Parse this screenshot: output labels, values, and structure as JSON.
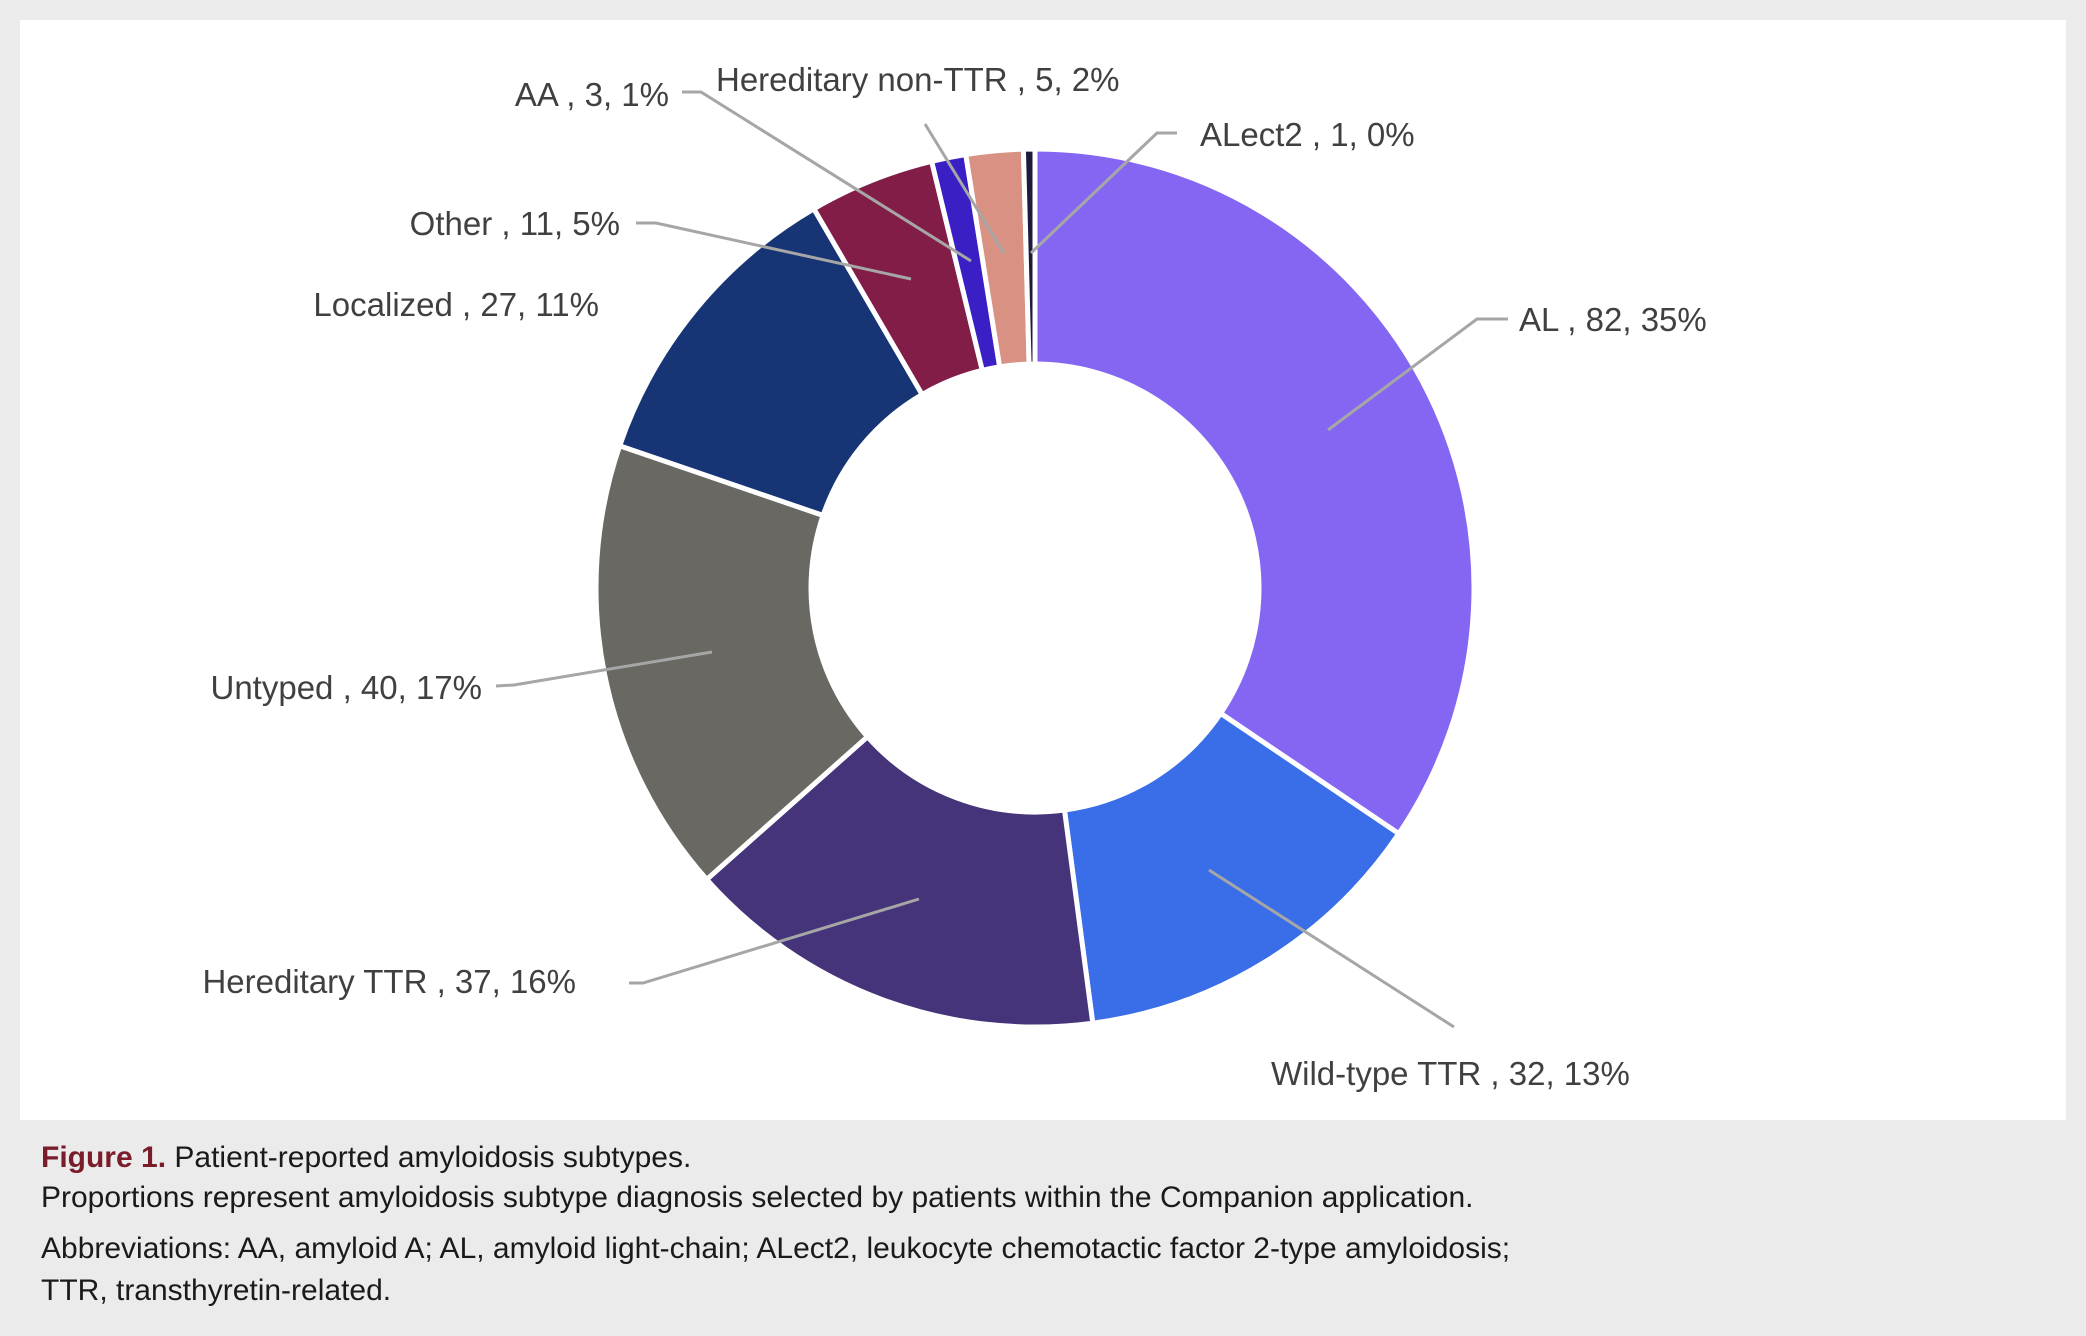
{
  "chart_data": {
    "type": "pie",
    "variant": "donut",
    "categories": [
      "AL",
      "Wild-type TTR",
      "Hereditary TTR",
      "Untyped",
      "Localized",
      "Other",
      "AA",
      "Hereditary non-TTR",
      "ALect2"
    ],
    "values": [
      82,
      32,
      37,
      40,
      27,
      11,
      3,
      5,
      1
    ],
    "percent_labels": [
      "35%",
      "13%",
      "16%",
      "17%",
      "11%",
      "5%",
      "1%",
      "2%",
      "0%"
    ],
    "labels": [
      "AL , 82, 35%",
      "Wild-type TTR , 32, 13%",
      "Hereditary TTR , 37, 16%",
      "Untyped , 40, 17%",
      "Localized , 27, 11%",
      "Other , 11, 5%",
      "AA , 3, 1%",
      "Hereditary non-TTR , 5, 2%",
      "ALect2 , 1, 0%"
    ],
    "colors": [
      "#8566f2",
      "#3a6de8",
      "#45347a",
      "#696862",
      "#173575",
      "#821d48",
      "#3a1fc4",
      "#d89183",
      "#1e1a3a"
    ],
    "direction": "clockwise from top",
    "legend": "none"
  },
  "caption": {
    "figure_label": "Figure 1.",
    "title": "Patient-reported amyloidosis subtypes.",
    "line2": "Proportions represent amyloidosis subtype diagnosis selected by patients within the Companion application.",
    "line3": "Abbreviations: AA, amyloid A; AL, amyloid light-chain; ALect2, leukocyte chemotactic factor 2-type amyloidosis;",
    "line4": "TTR, transthyretin-related."
  }
}
